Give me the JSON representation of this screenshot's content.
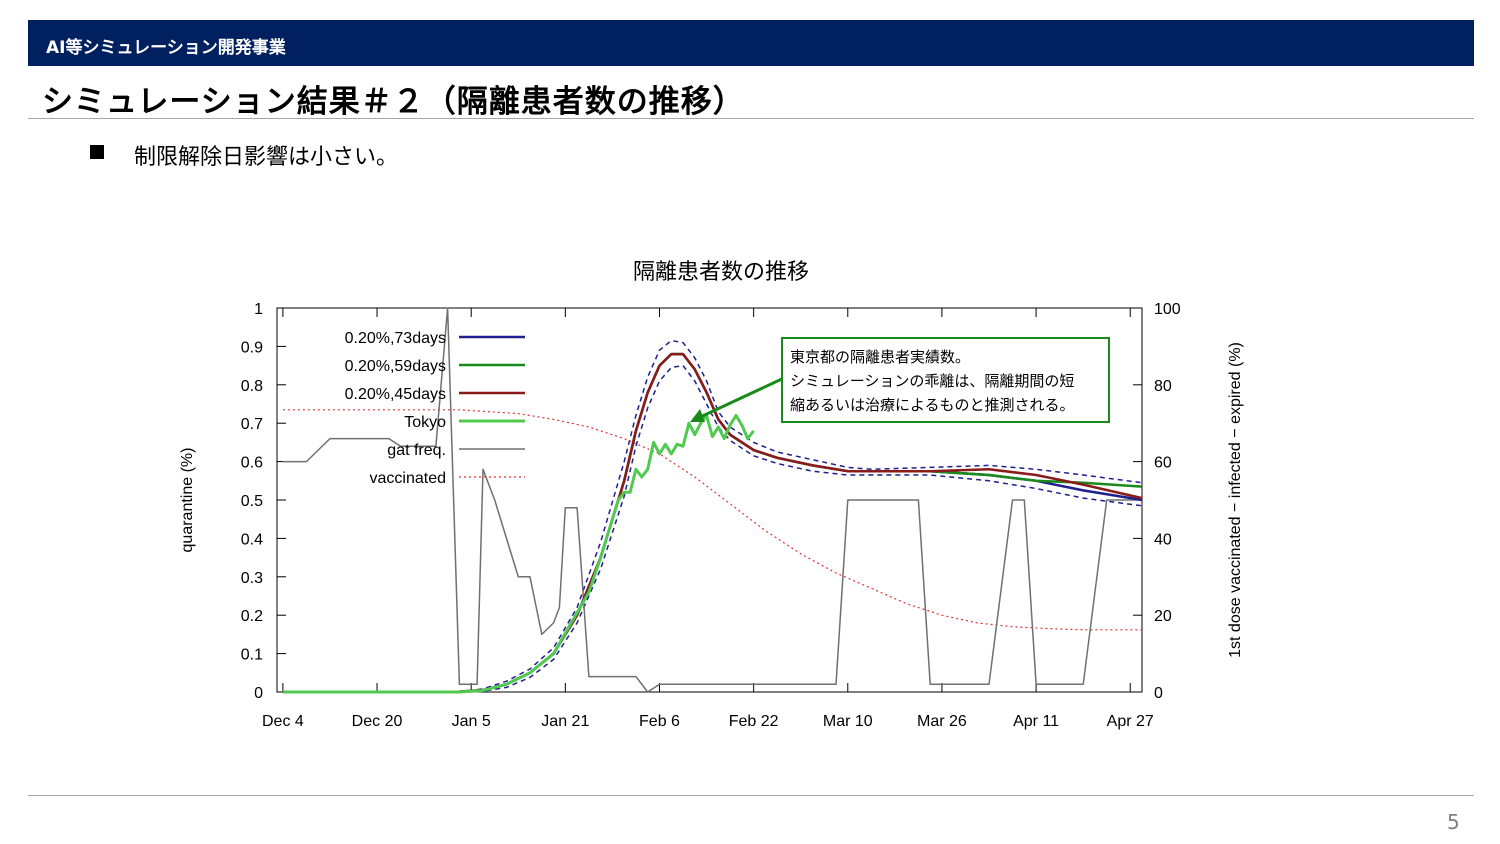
{
  "header": {
    "text": "AI等シミュレーション開発事業"
  },
  "slide_title": "シミュレーション結果＃２（隔離患者数の推移）",
  "bullet": {
    "text": "制限解除日影響は小さい。"
  },
  "page_number": "5",
  "colors": {
    "header_bg": "#002060",
    "series_73": "#1f1f8f",
    "series_59": "#1a8a1a",
    "series_45": "#8b1a1a",
    "tokyo": "#4fc94f",
    "gat": "#707070",
    "vaccinated": "#e03030",
    "annotation_border": "#1a8a1a"
  },
  "annotation": {
    "lines": [
      "東京都の隔離患者実績数。",
      "シミュレーションの乖離は、隔離期間の短",
      "縮あるいは治療によるものと推測される。"
    ]
  },
  "chart_data": {
    "type": "line",
    "title": "隔離患者数の推移",
    "ylabel": "quarantine (%)",
    "y2label": "1st dose vaccinated − infected − expired (%)",
    "ylim": [
      0,
      1
    ],
    "y2lim": [
      0,
      100
    ],
    "xlim": [
      -1,
      146
    ],
    "x_ticks": [
      {
        "label": "Dec 4",
        "day": 0
      },
      {
        "label": "Dec 20",
        "day": 16
      },
      {
        "label": "Jan 5",
        "day": 32
      },
      {
        "label": "Jan 21",
        "day": 48
      },
      {
        "label": "Feb 6",
        "day": 64
      },
      {
        "label": "Feb 22",
        "day": 80
      },
      {
        "label": "Mar 10",
        "day": 96
      },
      {
        "label": "Mar 26",
        "day": 112
      },
      {
        "label": "Apr 11",
        "day": 128
      },
      {
        "label": "Apr 27",
        "day": 144
      }
    ],
    "y_ticks": [
      "0",
      "0.1",
      "0.2",
      "0.3",
      "0.4",
      "0.5",
      "0.6",
      "0.7",
      "0.8",
      "0.9",
      "1"
    ],
    "y2_ticks": [
      "0",
      "20",
      "40",
      "60",
      "80",
      "100"
    ],
    "grid": false,
    "legend": "top-left",
    "series": [
      {
        "name": "0.20%,73days",
        "axis": "y",
        "color": "#1f1f8f",
        "x": [
          0,
          20,
          30,
          34,
          38,
          42,
          46,
          50,
          54,
          58,
          60,
          62,
          64,
          66,
          68,
          70,
          72,
          74,
          76,
          80,
          84,
          90,
          96,
          100,
          110,
          120,
          128,
          136,
          146
        ],
        "y": [
          0,
          0,
          0.001,
          0.005,
          0.02,
          0.05,
          0.1,
          0.2,
          0.35,
          0.55,
          0.68,
          0.78,
          0.85,
          0.88,
          0.88,
          0.84,
          0.78,
          0.71,
          0.67,
          0.63,
          0.61,
          0.59,
          0.575,
          0.575,
          0.575,
          0.565,
          0.55,
          0.525,
          0.5
        ]
      },
      {
        "name": "0.20%,59days",
        "axis": "y",
        "color": "#1a8a1a",
        "x": [
          0,
          20,
          30,
          34,
          38,
          42,
          46,
          50,
          54,
          58,
          60,
          62,
          64,
          66,
          68,
          70,
          72,
          74,
          76,
          80,
          84,
          90,
          96,
          100,
          110,
          120,
          128,
          136,
          146
        ],
        "y": [
          0,
          0,
          0.001,
          0.005,
          0.02,
          0.05,
          0.1,
          0.2,
          0.35,
          0.55,
          0.68,
          0.78,
          0.85,
          0.88,
          0.88,
          0.84,
          0.78,
          0.71,
          0.67,
          0.63,
          0.61,
          0.59,
          0.575,
          0.575,
          0.575,
          0.565,
          0.55,
          0.545,
          0.535
        ]
      },
      {
        "name": "0.20%,45days",
        "axis": "y",
        "color": "#8b1a1a",
        "x": [
          0,
          20,
          30,
          34,
          38,
          42,
          46,
          50,
          54,
          58,
          60,
          62,
          64,
          66,
          68,
          70,
          72,
          74,
          76,
          80,
          84,
          90,
          96,
          100,
          110,
          120,
          128,
          136,
          146
        ],
        "y": [
          0,
          0,
          0.001,
          0.005,
          0.02,
          0.05,
          0.1,
          0.2,
          0.35,
          0.55,
          0.68,
          0.78,
          0.85,
          0.88,
          0.88,
          0.84,
          0.78,
          0.71,
          0.67,
          0.63,
          0.61,
          0.59,
          0.575,
          0.575,
          0.575,
          0.58,
          0.565,
          0.54,
          0.505
        ]
      },
      {
        "name": "Tokyo",
        "axis": "y",
        "color": "#4fc94f",
        "x": [
          0,
          30,
          34,
          38,
          42,
          46,
          49,
          52,
          54,
          56,
          57,
          58,
          59,
          60,
          61,
          62,
          63,
          64,
          65,
          66,
          67,
          68,
          69,
          70,
          71,
          72,
          73,
          74,
          75,
          76,
          77,
          78,
          79,
          80
        ],
        "y": [
          0,
          0,
          0.004,
          0.02,
          0.05,
          0.1,
          0.18,
          0.26,
          0.35,
          0.45,
          0.5,
          0.52,
          0.52,
          0.58,
          0.56,
          0.58,
          0.65,
          0.62,
          0.645,
          0.62,
          0.645,
          0.64,
          0.7,
          0.67,
          0.7,
          0.72,
          0.665,
          0.69,
          0.66,
          0.695,
          0.72,
          0.695,
          0.66,
          0.68
        ]
      },
      {
        "name": "gat freq.",
        "axis": "y2",
        "color": "#707070",
        "x": [
          0,
          2,
          4,
          8,
          12,
          16,
          18,
          20,
          22,
          24,
          26,
          28,
          30,
          32,
          33,
          34,
          36,
          38,
          40,
          42,
          44,
          46,
          47,
          48,
          49,
          50,
          52,
          54,
          56,
          58,
          60,
          62,
          64,
          66,
          68,
          70,
          72,
          74,
          76,
          78,
          80,
          84,
          88,
          92,
          93,
          94,
          96,
          100,
          104,
          106,
          108,
          110,
          112,
          114,
          116,
          120,
          124,
          126,
          128,
          130,
          132,
          136,
          140,
          144,
          146
        ],
        "y": [
          60,
          60,
          60,
          66,
          66,
          66,
          66,
          64,
          64,
          64,
          64,
          100,
          2,
          2,
          2,
          58,
          50,
          40,
          30,
          30,
          15,
          18,
          22,
          48,
          48,
          48,
          4,
          4,
          4,
          4,
          4,
          0,
          2,
          2,
          2,
          2,
          2,
          2,
          2,
          2,
          2,
          2,
          2,
          2,
          2,
          2,
          50,
          50,
          50,
          50,
          50,
          2,
          2,
          2,
          2,
          2,
          50,
          50,
          2,
          2,
          2,
          2,
          50,
          50,
          50
        ]
      },
      {
        "name": "vaccinated",
        "axis": "y2",
        "color": "#e03030",
        "x": [
          0,
          10,
          20,
          30,
          40,
          46,
          52,
          58,
          64,
          70,
          76,
          82,
          88,
          94,
          100,
          106,
          112,
          118,
          124,
          130,
          136,
          146
        ],
        "y": [
          73.5,
          73.5,
          73.5,
          73.5,
          72.5,
          71,
          69,
          66,
          62,
          56,
          49,
          42,
          36,
          31,
          27,
          23,
          20,
          18,
          17,
          16.5,
          16.2,
          16.2
        ]
      },
      {
        "name": "band-upper",
        "axis": "y",
        "color": "#1f1f8f",
        "style": "dashed",
        "x": [
          30,
          34,
          38,
          42,
          46,
          50,
          54,
          58,
          60,
          62,
          64,
          66,
          68,
          70,
          72,
          74,
          76,
          80,
          84,
          90,
          96,
          100,
          110,
          120,
          128,
          136,
          146
        ],
        "y": [
          0.001,
          0.008,
          0.028,
          0.06,
          0.115,
          0.22,
          0.39,
          0.6,
          0.72,
          0.82,
          0.89,
          0.915,
          0.91,
          0.87,
          0.81,
          0.73,
          0.69,
          0.65,
          0.625,
          0.605,
          0.585,
          0.58,
          0.585,
          0.59,
          0.58,
          0.565,
          0.545
        ]
      },
      {
        "name": "band-lower",
        "axis": "y",
        "color": "#1f1f8f",
        "style": "dashed",
        "x": [
          30,
          34,
          38,
          42,
          46,
          50,
          54,
          58,
          60,
          62,
          64,
          66,
          68,
          70,
          72,
          74,
          76,
          80,
          84,
          90,
          96,
          100,
          110,
          120,
          128,
          136,
          146
        ],
        "y": [
          0,
          0.002,
          0.012,
          0.038,
          0.085,
          0.18,
          0.32,
          0.51,
          0.64,
          0.74,
          0.81,
          0.845,
          0.85,
          0.81,
          0.75,
          0.69,
          0.655,
          0.615,
          0.595,
          0.575,
          0.565,
          0.565,
          0.565,
          0.55,
          0.53,
          0.505,
          0.485
        ]
      }
    ]
  }
}
